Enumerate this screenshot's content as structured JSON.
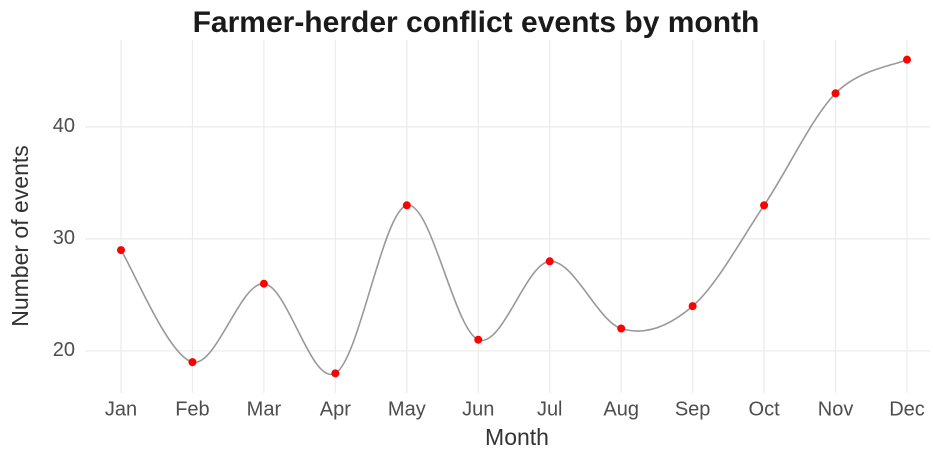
{
  "chart_data": {
    "type": "line",
    "title": "Farmer-herder conflict events by month",
    "x_label": "Month",
    "y_label": "Number of events",
    "categories": [
      "Jan",
      "Feb",
      "Mar",
      "Apr",
      "May",
      "Jun",
      "Jul",
      "Aug",
      "Sep",
      "Oct",
      "Nov",
      "Dec"
    ],
    "values": [
      29,
      19,
      26,
      18,
      33,
      21,
      28,
      22,
      24,
      33,
      43,
      46
    ],
    "line_color": "#999999",
    "point_color": "#ff0000",
    "ylim": [
      16.6,
      47.4
    ],
    "yticks": [
      20,
      30,
      40
    ],
    "grid": true
  }
}
